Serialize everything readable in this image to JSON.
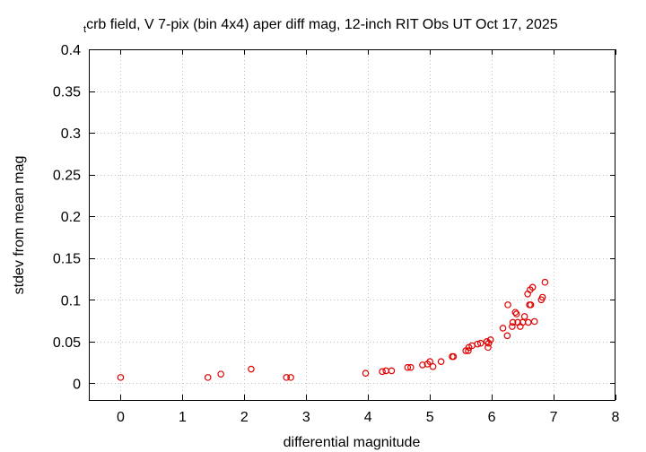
{
  "chart_data": {
    "type": "scatter",
    "title_sub": "t",
    "title": "crb field, V 7-pix (bin 4x4) aper diff mag,  12-inch RIT Obs UT Oct 17, 2025",
    "xlabel": "differential magnitude",
    "ylabel": "stdev from mean mag",
    "xlim": [
      -0.5,
      8
    ],
    "ylim": [
      -0.02,
      0.4
    ],
    "xticks": [
      0,
      1,
      2,
      3,
      4,
      5,
      6,
      7,
      8
    ],
    "xtick_labels": [
      "0",
      "1",
      "2",
      "3",
      "4",
      "5",
      "6",
      "7",
      "8"
    ],
    "yticks": [
      0,
      0.05,
      0.1,
      0.15,
      0.2,
      0.25,
      0.3,
      0.35,
      0.4
    ],
    "ytick_labels": [
      "0",
      "0.05",
      "0.1",
      "0.15",
      "0.2",
      "0.25",
      "0.3",
      "0.35",
      "0.4"
    ],
    "grid": true,
    "marker": "circle",
    "color": "#e00000",
    "points": [
      [
        0.0,
        0.007
      ],
      [
        1.41,
        0.007
      ],
      [
        1.62,
        0.011
      ],
      [
        2.11,
        0.017
      ],
      [
        2.68,
        0.007
      ],
      [
        2.75,
        0.007
      ],
      [
        3.96,
        0.012
      ],
      [
        4.23,
        0.014
      ],
      [
        4.29,
        0.015
      ],
      [
        4.38,
        0.015
      ],
      [
        4.64,
        0.019
      ],
      [
        4.69,
        0.019
      ],
      [
        4.88,
        0.022
      ],
      [
        4.96,
        0.023
      ],
      [
        5.0,
        0.026
      ],
      [
        5.05,
        0.02
      ],
      [
        5.18,
        0.026
      ],
      [
        5.36,
        0.032
      ],
      [
        5.38,
        0.032
      ],
      [
        5.58,
        0.039
      ],
      [
        5.62,
        0.039
      ],
      [
        5.63,
        0.043
      ],
      [
        5.68,
        0.045
      ],
      [
        5.77,
        0.047
      ],
      [
        5.82,
        0.048
      ],
      [
        5.92,
        0.05
      ],
      [
        5.94,
        0.043
      ],
      [
        5.95,
        0.048
      ],
      [
        5.98,
        0.052
      ],
      [
        6.18,
        0.066
      ],
      [
        6.25,
        0.057
      ],
      [
        6.26,
        0.094
      ],
      [
        6.33,
        0.068
      ],
      [
        6.34,
        0.073
      ],
      [
        6.38,
        0.085
      ],
      [
        6.4,
        0.083
      ],
      [
        6.42,
        0.073
      ],
      [
        6.46,
        0.068
      ],
      [
        6.5,
        0.073
      ],
      [
        6.53,
        0.08
      ],
      [
        6.58,
        0.107
      ],
      [
        6.59,
        0.073
      ],
      [
        6.61,
        0.094
      ],
      [
        6.62,
        0.112
      ],
      [
        6.63,
        0.094
      ],
      [
        6.66,
        0.115
      ],
      [
        6.69,
        0.074
      ],
      [
        6.8,
        0.1
      ],
      [
        6.82,
        0.103
      ],
      [
        6.86,
        0.121
      ]
    ]
  }
}
